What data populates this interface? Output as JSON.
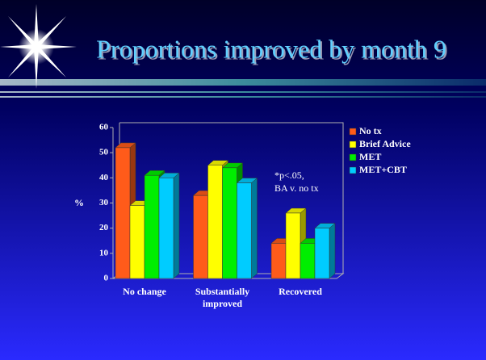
{
  "chart_data": {
    "type": "bar",
    "title": "Proportions improved by month 9",
    "ylabel": "%",
    "annotation_lines": [
      "*p<.05,",
      "BA v. no tx"
    ],
    "categories": [
      "No change",
      "Substantially improved",
      "Recovered"
    ],
    "series": [
      {
        "name": "No tx",
        "color": "#ff5b1a",
        "values": [
          52,
          33,
          14
        ]
      },
      {
        "name": "Brief Advice",
        "color": "#ffff00",
        "values": [
          29,
          45,
          26
        ]
      },
      {
        "name": "MET",
        "color": "#00ee00",
        "values": [
          41,
          44,
          14
        ]
      },
      {
        "name": "MET+CBT",
        "color": "#00ccff",
        "values": [
          40,
          38,
          20
        ]
      }
    ],
    "ylim": [
      0,
      60
    ],
    "yticks": [
      0,
      10,
      20,
      30,
      40,
      50,
      60
    ],
    "grid": false,
    "legend": "right"
  }
}
